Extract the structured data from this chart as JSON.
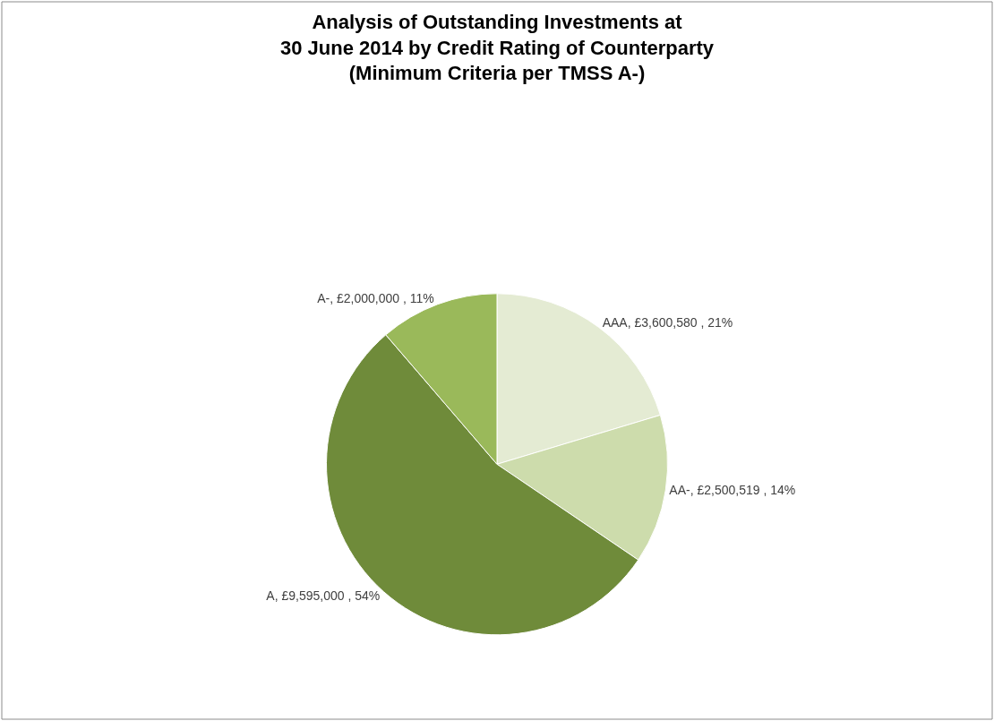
{
  "chart_data": {
    "type": "pie",
    "title": "Analysis of Outstanding Investments at\n30 June 2014 by Credit Rating of Counterparty\n(Minimum Criteria per TMSS A-)",
    "categories": [
      "AAA",
      "AA-",
      "A",
      "A-"
    ],
    "values": [
      3600580,
      2500519,
      9595000,
      2000000
    ],
    "colors": [
      "#e4ebd3",
      "#cddcac",
      "#6f8b3a",
      "#9ab95a"
    ],
    "value_labels": [
      "£3,600,580 , 21%",
      "£2,500,519 , 14%",
      "£9,595,000 , 54%",
      "£2,000,000 , 11%"
    ],
    "legend": false
  }
}
